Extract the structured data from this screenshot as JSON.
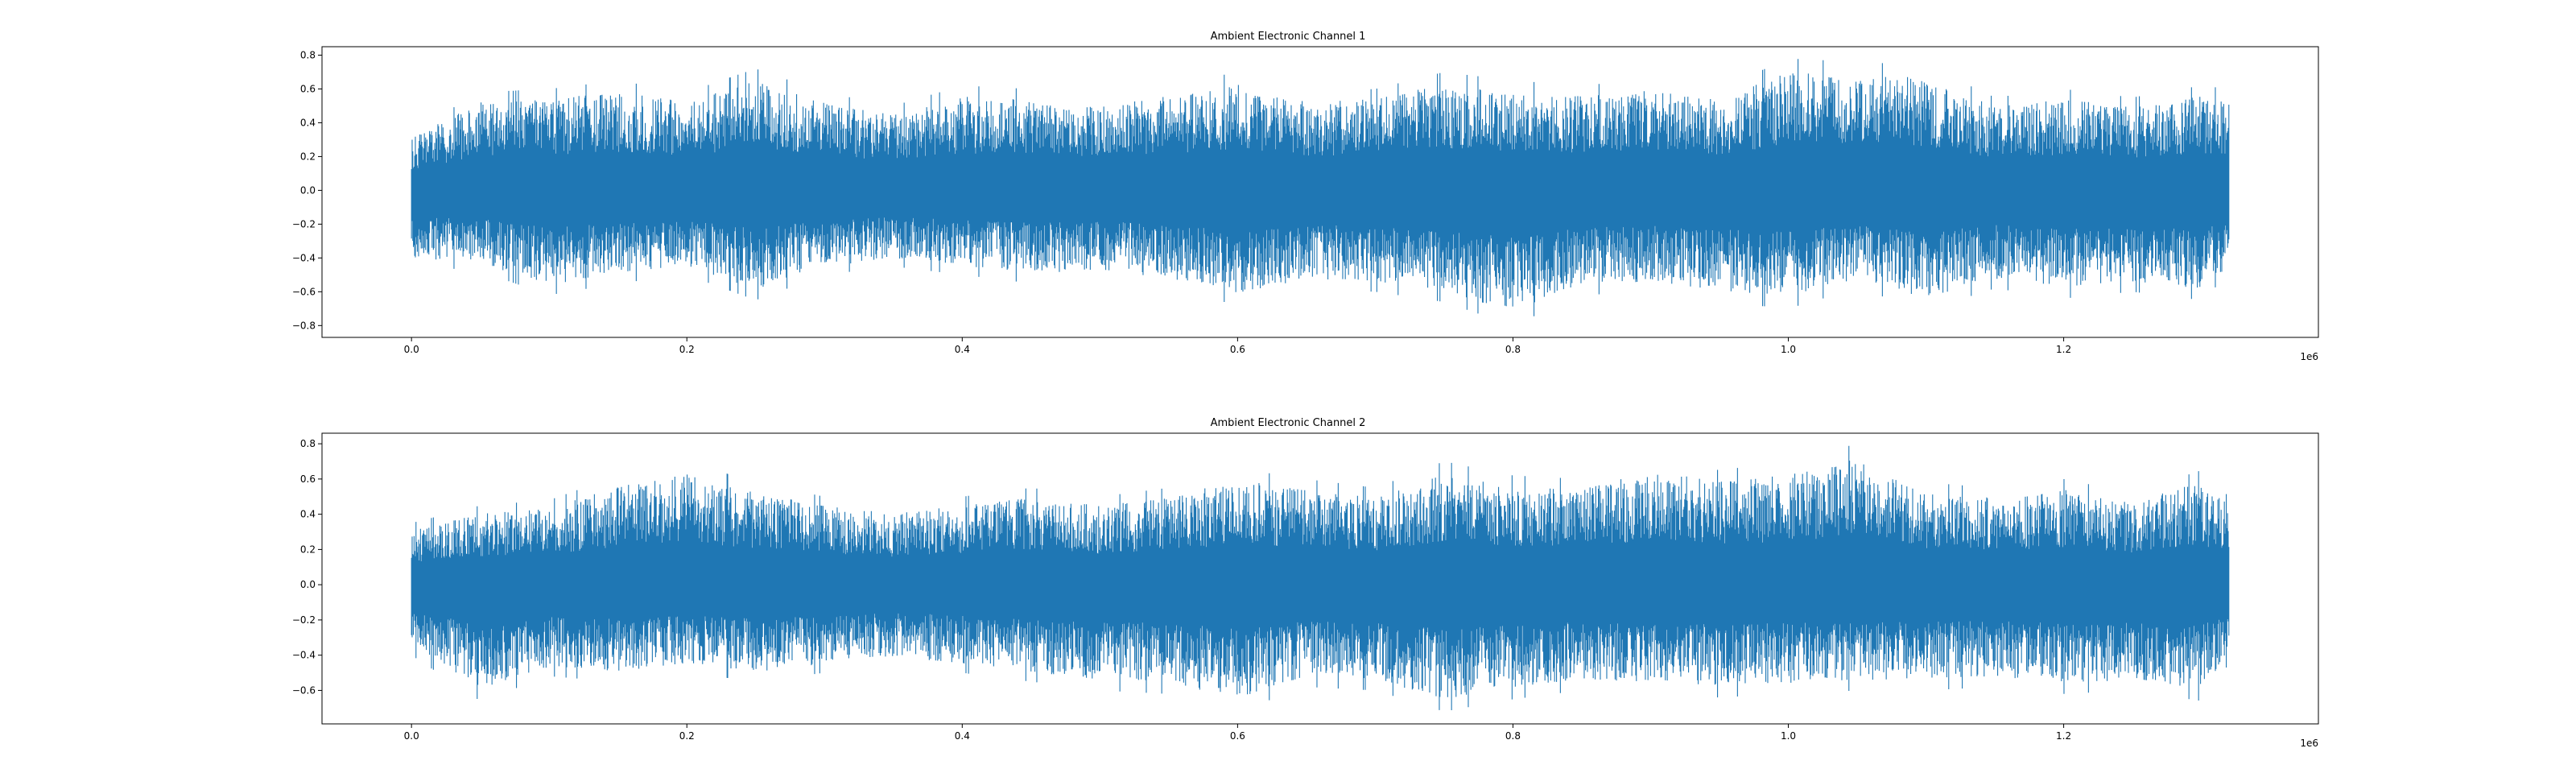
{
  "chart_data": [
    {
      "type": "line",
      "title": "Ambient Electronic Channel 1",
      "xlabel": "",
      "ylabel": "",
      "xlim": [
        -65000,
        1385000
      ],
      "ylim": [
        -0.87,
        0.85
      ],
      "x_ticks": [
        0,
        0.2,
        0.4,
        0.6,
        0.8,
        1.0,
        1.2
      ],
      "x_tick_labels": [
        "0.0",
        "0.2",
        "0.4",
        "0.6",
        "0.8",
        "1.0",
        "1.2"
      ],
      "x_offset_label": "1e6",
      "y_ticks": [
        -0.8,
        -0.6,
        -0.4,
        -0.2,
        0.0,
        0.2,
        0.4,
        0.6,
        0.8
      ],
      "y_tick_labels": [
        "−0.8",
        "−0.6",
        "−0.4",
        "−0.2",
        "0.0",
        "0.2",
        "0.4",
        "0.6",
        "0.8"
      ],
      "grid": false,
      "line_color": "#1f77b4",
      "n_samples": 1320000,
      "envelope": {
        "x": [
          0,
          50000,
          100000,
          150000,
          200000,
          250000,
          300000,
          350000,
          400000,
          450000,
          500000,
          550000,
          600000,
          650000,
          700000,
          750000,
          800000,
          850000,
          900000,
          950000,
          1000000,
          1050000,
          1100000,
          1150000,
          1200000,
          1250000,
          1300000,
          1320000
        ],
        "max": [
          0.35,
          0.58,
          0.6,
          0.65,
          0.58,
          0.72,
          0.58,
          0.5,
          0.62,
          0.6,
          0.55,
          0.62,
          0.7,
          0.58,
          0.6,
          0.7,
          0.65,
          0.62,
          0.66,
          0.6,
          0.78,
          0.76,
          0.74,
          0.55,
          0.6,
          0.55,
          0.62,
          0.6
        ],
        "min": [
          -0.44,
          -0.48,
          -0.62,
          -0.55,
          -0.5,
          -0.65,
          -0.5,
          -0.45,
          -0.5,
          -0.55,
          -0.52,
          -0.58,
          -0.68,
          -0.58,
          -0.6,
          -0.66,
          -0.8,
          -0.62,
          -0.6,
          -0.66,
          -0.7,
          -0.58,
          -0.71,
          -0.58,
          -0.64,
          -0.6,
          -0.65,
          -0.5
        ]
      }
    },
    {
      "type": "line",
      "title": "Ambient Electronic Channel 2",
      "xlabel": "",
      "ylabel": "",
      "xlim": [
        -65000,
        1385000
      ],
      "ylim": [
        -0.79,
        0.86
      ],
      "x_ticks": [
        0,
        0.2,
        0.4,
        0.6,
        0.8,
        1.0,
        1.2
      ],
      "x_tick_labels": [
        "0.0",
        "0.2",
        "0.4",
        "0.6",
        "0.8",
        "1.0",
        "1.2"
      ],
      "x_offset_label": "1e6",
      "y_ticks": [
        -0.6,
        -0.4,
        -0.2,
        0.0,
        0.2,
        0.4,
        0.6,
        0.8
      ],
      "y_tick_labels": [
        "−0.6",
        "−0.4",
        "−0.2",
        "0.0",
        "0.2",
        "0.4",
        "0.6",
        "0.8"
      ],
      "grid": false,
      "line_color": "#1f77b4",
      "n_samples": 1320000,
      "envelope": {
        "x": [
          0,
          50000,
          100000,
          150000,
          200000,
          250000,
          300000,
          350000,
          400000,
          450000,
          500000,
          550000,
          600000,
          650000,
          700000,
          750000,
          800000,
          850000,
          900000,
          950000,
          1000000,
          1050000,
          1100000,
          1150000,
          1200000,
          1250000,
          1300000,
          1320000
        ],
        "max": [
          0.35,
          0.45,
          0.48,
          0.62,
          0.7,
          0.58,
          0.5,
          0.45,
          0.5,
          0.55,
          0.5,
          0.55,
          0.66,
          0.6,
          0.55,
          0.7,
          0.62,
          0.6,
          0.72,
          0.65,
          0.7,
          0.8,
          0.58,
          0.55,
          0.6,
          0.52,
          0.65,
          0.5
        ],
        "min": [
          -0.4,
          -0.66,
          -0.52,
          -0.55,
          -0.5,
          -0.55,
          -0.5,
          -0.45,
          -0.5,
          -0.55,
          -0.6,
          -0.62,
          -0.72,
          -0.58,
          -0.6,
          -0.72,
          -0.65,
          -0.6,
          -0.62,
          -0.64,
          -0.62,
          -0.6,
          -0.6,
          -0.58,
          -0.62,
          -0.6,
          -0.66,
          -0.45
        ]
      }
    }
  ]
}
